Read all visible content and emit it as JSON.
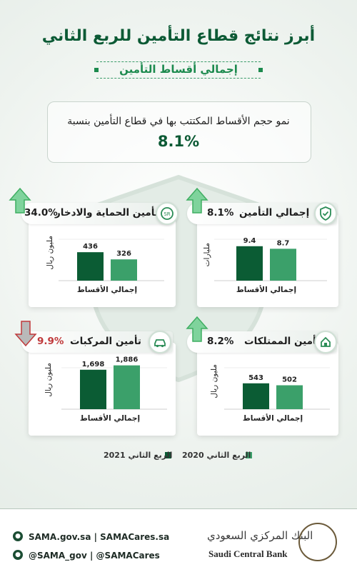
{
  "title": "أبرز نتائج قطاع التأمين للربع الثاني",
  "subtitle": "إجمالي أقساط التأمين",
  "growth": {
    "text": "نمو حجم الأقساط المكتتب بها في قطاع التأمين بنسبة",
    "value": "8.1%"
  },
  "colors": {
    "year2021": "#0b5c34",
    "year2020": "#3ba06a",
    "up": "#3fae62",
    "down": "#c0393b",
    "down_text": "#c0393b"
  },
  "legend": {
    "q2_2021": "الربع الثاني 2021",
    "q2_2020": "الربع الثاني 2020"
  },
  "chart_data": [
    {
      "type": "bar",
      "title": "إجمالي التأمين",
      "change": "8.1%",
      "direction": "up",
      "icon": "shield-check-icon",
      "unit": "مليارات",
      "categories": [
        "إجمالي الأقساط"
      ],
      "series": [
        {
          "name": "الربع الثاني 2021",
          "values": [
            9.4
          ],
          "label": "9.4"
        },
        {
          "name": "الربع الثاني 2020",
          "values": [
            8.7
          ],
          "label": "8.7"
        }
      ],
      "ylim": [
        0,
        13
      ]
    },
    {
      "type": "bar",
      "title": "تأمين الحماية والادخار",
      "change": "34.0%",
      "direction": "up",
      "icon": "savings-icon",
      "unit": "مليون ريال",
      "categories": [
        "إجمالي الأقساط"
      ],
      "series": [
        {
          "name": "الربع الثاني 2021",
          "values": [
            436
          ],
          "label": "436"
        },
        {
          "name": "الربع الثاني 2020",
          "values": [
            326
          ],
          "label": "326"
        }
      ],
      "ylim": [
        0,
        730
      ]
    },
    {
      "type": "bar",
      "title": "تأمين الممتلكات",
      "change": "8.2%",
      "direction": "up",
      "icon": "house-hand-icon",
      "unit": "مليون ريال",
      "categories": [
        "إجمالي الأقساط"
      ],
      "series": [
        {
          "name": "الربع الثاني 2021",
          "values": [
            543
          ],
          "label": "543"
        },
        {
          "name": "الربع الثاني 2020",
          "values": [
            502
          ],
          "label": "502"
        }
      ],
      "ylim": [
        0,
        1000
      ]
    },
    {
      "type": "bar",
      "title": "تأمين المركبات",
      "change": "9.9%",
      "direction": "down",
      "icon": "car-icon",
      "unit": "مليون ريال",
      "categories": [
        "إجمالي الأقساط"
      ],
      "series": [
        {
          "name": "الربع الثاني 2021",
          "values": [
            1698
          ],
          "label": "1,698"
        },
        {
          "name": "الربع الثاني 2020",
          "values": [
            1886
          ],
          "label": "1,886"
        }
      ],
      "ylim": [
        0,
        2050
      ]
    }
  ],
  "footer": {
    "web": "SAMA.gov.sa | SAMACares.sa",
    "twitter": "@SAMA_gov | @SAMACares",
    "bank_ar": "البنك المركزي السعودي",
    "bank_ar_small": "SAMA",
    "bank_en": "Saudi Central Bank"
  }
}
